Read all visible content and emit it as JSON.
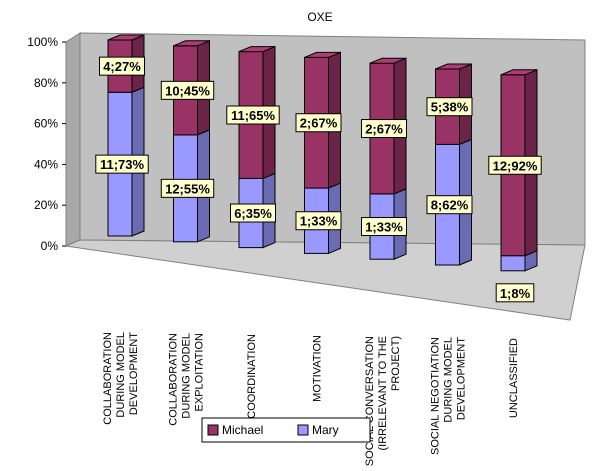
{
  "chart_data": {
    "type": "bar",
    "stacked": true,
    "percent": true,
    "three_d": true,
    "title": "OXE",
    "categories": [
      [
        "COLLABORATION",
        "DURING MODEL",
        "DEVELOPMENT"
      ],
      [
        "COLLABORATION",
        "DURING MODEL",
        "EXPLOITATION"
      ],
      [
        "COORDINATION"
      ],
      [
        "MOTIVATION"
      ],
      [
        "SOCIAL CONVERSATION",
        "(IRRELEVANT TO THE",
        "PROJECT)"
      ],
      [
        "SOCIAL NEGOTIATION",
        "DURING MODEL",
        "DEVELOPMENT"
      ],
      [
        "UNCLASSIFIED"
      ]
    ],
    "series": [
      {
        "name": "Mary",
        "color": "#9999ff",
        "counts": [
          11,
          12,
          6,
          1,
          1,
          8,
          1
        ],
        "percents": [
          73,
          55,
          35,
          33,
          33,
          62,
          8
        ],
        "labels": [
          "11;73%",
          "12;55%",
          "6;35%",
          "1;33%",
          "1;33%",
          "8;62%",
          "1;8%"
        ]
      },
      {
        "name": "Michael",
        "color": "#993366",
        "counts": [
          4,
          10,
          11,
          2,
          2,
          5,
          12
        ],
        "percents": [
          27,
          45,
          65,
          67,
          67,
          38,
          92
        ],
        "labels": [
          "4;27%",
          "10;45%",
          "11;65%",
          "2;67%",
          "2;67%",
          "5;38%",
          "12;92%"
        ]
      }
    ],
    "y_ticks": [
      "0%",
      "20%",
      "40%",
      "60%",
      "80%",
      "100%"
    ],
    "ylim": [
      0,
      100
    ],
    "grid": false,
    "legend_position": "bottom",
    "legend_order": [
      "Michael",
      "Mary"
    ],
    "label_box_color": "#ffffcc"
  }
}
